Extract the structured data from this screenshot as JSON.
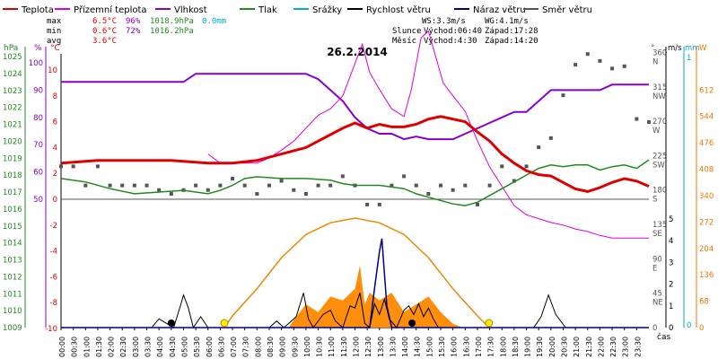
{
  "chart_data": {
    "type": "line",
    "title": "26.2.2014",
    "legend": [
      {
        "label": "Teplota",
        "color": "#dd0000"
      },
      {
        "label": "Přízemní teplota",
        "color": "#dd00dd"
      },
      {
        "label": "Vlhkost",
        "color": "#8800cc"
      },
      {
        "label": "Tlak",
        "color": "#228822"
      },
      {
        "label": "Srážky",
        "color": "#00aacc"
      },
      {
        "label": "Rychlost větru",
        "color": "#000000"
      },
      {
        "label": "Náraz větru",
        "color": "#000088"
      },
      {
        "label": "Směr větru",
        "color": "#555555"
      }
    ],
    "stats": {
      "max": {
        "label": "max",
        "temp": "6.5°C",
        "hum": "96%",
        "press": "1018.9hPa",
        "rain": "0.0mm"
      },
      "min": {
        "label": "min",
        "temp": "0.6°C",
        "hum": "72%",
        "press": "1016.2hPa"
      },
      "avg": {
        "label": "avg",
        "temp": "3.6°C"
      }
    },
    "wind": {
      "ws": "WS:3.3m/s",
      "wg": "WG:4.1m/s"
    },
    "sun": {
      "label": "Slunce",
      "rise": "Východ:06:40",
      "set": "Západ:17:28"
    },
    "moon": {
      "label": "Měsíc",
      "rise": "Východ:4:30",
      "set": "Západ:14:20"
    },
    "axes": {
      "hpa": {
        "label": "hPa",
        "ticks": [
          "1025",
          "1024",
          "1023",
          "1022",
          "1021",
          "1020",
          "1019",
          "1018",
          "1017",
          "1016",
          "1015",
          "1014",
          "1013",
          "1012",
          "1011",
          "1010",
          "1009"
        ]
      },
      "pct": {
        "label": "%",
        "ticks": [
          "100",
          "90",
          "80",
          "70",
          "60",
          "50"
        ]
      },
      "temp": {
        "label": "°C",
        "ticks": [
          "10",
          "8",
          "6",
          "4",
          "2",
          "0",
          "-2",
          "-4",
          "-6",
          "-8",
          "-10"
        ]
      },
      "dir": {
        "label": "°",
        "ticks": [
          {
            "v": "360",
            "n": "N"
          },
          {
            "v": "315",
            "n": "NW"
          },
          {
            "v": "270",
            "n": "W"
          },
          {
            "v": "225",
            "n": "SW"
          },
          {
            "v": "180",
            "n": "S"
          },
          {
            "v": "135",
            "n": "SE"
          },
          {
            "v": "90",
            "n": "E"
          },
          {
            "v": "45",
            "n": "NE"
          },
          {
            "v": "0",
            "n": ""
          }
        ]
      },
      "ms": {
        "label": "m/s",
        "ticks": [
          "5",
          "4",
          "3",
          "2",
          "1",
          "0"
        ]
      },
      "mm": {
        "label": "mm",
        "ticks": [
          "1",
          "0"
        ]
      },
      "wm2": {
        "label": "W",
        "ticks": [
          "612",
          "544",
          "476",
          "408",
          "340",
          "272",
          "204",
          "136",
          "68",
          "0"
        ]
      },
      "x_label": "čas",
      "x_ticks": [
        "00:00",
        "00:30",
        "01:00",
        "01:30",
        "02:00",
        "02:30",
        "03:00",
        "03:30",
        "04:00",
        "04:30",
        "05:00",
        "05:30",
        "06:00",
        "06:30",
        "07:00",
        "07:30",
        "08:00",
        "08:30",
        "09:00",
        "09:30",
        "10:00",
        "10:30",
        "11:00",
        "11:30",
        "12:00",
        "12:30",
        "13:00",
        "13:30",
        "14:00",
        "14:30",
        "15:00",
        "15:30",
        "16:00",
        "16:30",
        "17:00",
        "17:30",
        "18:00",
        "18:30",
        "19:00",
        "19:30",
        "20:00",
        "20:30",
        "21:00",
        "21:30",
        "22:00",
        "22:30",
        "23:00",
        "23:30"
      ]
    },
    "series": {
      "temperature": [
        [
          0,
          2.8
        ],
        [
          1.5,
          3
        ],
        [
          3,
          3
        ],
        [
          4.5,
          3
        ],
        [
          6,
          2.8
        ],
        [
          7,
          2.8
        ],
        [
          8,
          3
        ],
        [
          9,
          3.5
        ],
        [
          10,
          4
        ],
        [
          11,
          5
        ],
        [
          11.5,
          5.5
        ],
        [
          12,
          5.9
        ],
        [
          12.5,
          5.5
        ],
        [
          13,
          5.8
        ],
        [
          13.5,
          5.6
        ],
        [
          14,
          5.6
        ],
        [
          14.5,
          5.8
        ],
        [
          15,
          6.2
        ],
        [
          15.5,
          6.4
        ],
        [
          16,
          6.2
        ],
        [
          16.5,
          6
        ],
        [
          17,
          5.2
        ],
        [
          17.5,
          4.5
        ],
        [
          18,
          3.5
        ],
        [
          18.5,
          2.8
        ],
        [
          19,
          2.2
        ],
        [
          19.5,
          1.9
        ],
        [
          20,
          1.8
        ],
        [
          20.5,
          1.3
        ],
        [
          21,
          0.8
        ],
        [
          21.5,
          0.6
        ],
        [
          22,
          0.9
        ],
        [
          22.5,
          1.3
        ],
        [
          23,
          1.6
        ],
        [
          23.5,
          1.4
        ],
        [
          24,
          1
        ]
      ],
      "ground_temperature": [
        [
          6,
          3.5
        ],
        [
          6.5,
          2.8
        ],
        [
          7,
          2.8
        ],
        [
          8,
          2.8
        ],
        [
          8.5,
          3.2
        ],
        [
          9,
          3.8
        ],
        [
          9.5,
          4.5
        ],
        [
          10,
          5.5
        ],
        [
          10.5,
          6.5
        ],
        [
          11,
          7
        ],
        [
          11.5,
          8
        ],
        [
          12,
          10.5
        ],
        [
          12.3,
          12
        ],
        [
          12.6,
          9.8
        ],
        [
          13,
          8.5
        ],
        [
          13.5,
          7
        ],
        [
          14,
          6.4
        ],
        [
          14.3,
          8.5
        ],
        [
          14.7,
          12.5
        ],
        [
          15,
          13
        ],
        [
          15.3,
          11
        ],
        [
          15.6,
          9
        ],
        [
          16,
          8
        ],
        [
          16.5,
          6.8
        ],
        [
          17,
          4.5
        ],
        [
          17.5,
          2.5
        ],
        [
          18,
          1
        ],
        [
          18.5,
          -0.5
        ],
        [
          19,
          -1.2
        ],
        [
          19.5,
          -1.5
        ],
        [
          20,
          -1.8
        ],
        [
          20.5,
          -2
        ],
        [
          21,
          -2.3
        ],
        [
          21.5,
          -2.5
        ],
        [
          22,
          -2.8
        ],
        [
          22.5,
          -3
        ],
        [
          23,
          -3
        ],
        [
          24,
          -3
        ]
      ],
      "humidity": [
        [
          0,
          93
        ],
        [
          5,
          93
        ],
        [
          5.5,
          96
        ],
        [
          6,
          96
        ],
        [
          10,
          96
        ],
        [
          10.5,
          94
        ],
        [
          11,
          90
        ],
        [
          11.5,
          86
        ],
        [
          12,
          80
        ],
        [
          12.5,
          76
        ],
        [
          13,
          74
        ],
        [
          13.5,
          74
        ],
        [
          14,
          72
        ],
        [
          14.5,
          73
        ],
        [
          15,
          72
        ],
        [
          15.5,
          72
        ],
        [
          16,
          72
        ],
        [
          16.5,
          74
        ],
        [
          17,
          76
        ],
        [
          17.5,
          78
        ],
        [
          18,
          80
        ],
        [
          18.5,
          82
        ],
        [
          19,
          82
        ],
        [
          19.5,
          86
        ],
        [
          20,
          90
        ],
        [
          21,
          90
        ],
        [
          22,
          90
        ],
        [
          22.5,
          92
        ],
        [
          24,
          92
        ]
      ],
      "pressure": [
        [
          0,
          1017.8
        ],
        [
          1,
          1017.6
        ],
        [
          2,
          1017.2
        ],
        [
          3,
          1016.9
        ],
        [
          4,
          1017
        ],
        [
          5,
          1017.1
        ],
        [
          6,
          1016.9
        ],
        [
          6.5,
          1017.1
        ],
        [
          7,
          1017.4
        ],
        [
          7.5,
          1017.8
        ],
        [
          8,
          1017.9
        ],
        [
          9,
          1017.8
        ],
        [
          10,
          1017.8
        ],
        [
          11,
          1017.7
        ],
        [
          11.5,
          1017.5
        ],
        [
          12,
          1017.4
        ],
        [
          13,
          1017.4
        ],
        [
          14,
          1017.2
        ],
        [
          14.5,
          1016.9
        ],
        [
          15,
          1016.7
        ],
        [
          16,
          1016.3
        ],
        [
          16.5,
          1016.2
        ],
        [
          17,
          1016.4
        ],
        [
          17.5,
          1016.8
        ],
        [
          18,
          1017.2
        ],
        [
          18.5,
          1017.6
        ],
        [
          19,
          1018
        ],
        [
          19.5,
          1018.4
        ],
        [
          20,
          1018.6
        ],
        [
          20.5,
          1018.5
        ],
        [
          21,
          1018.6
        ],
        [
          21.5,
          1018.6
        ],
        [
          22,
          1018.3
        ],
        [
          22.5,
          1018.5
        ],
        [
          23,
          1018.6
        ],
        [
          23.5,
          1018.4
        ],
        [
          24,
          1018.9
        ]
      ],
      "wind_speed": [
        [
          0,
          0
        ],
        [
          3.7,
          0
        ],
        [
          4,
          0.4
        ],
        [
          4.3,
          0.2
        ],
        [
          4.6,
          0
        ],
        [
          4.9,
          1.1
        ],
        [
          5,
          1.5
        ],
        [
          5.2,
          0.9
        ],
        [
          5.4,
          0
        ],
        [
          5.7,
          0.5
        ],
        [
          6,
          0
        ],
        [
          8.5,
          0
        ],
        [
          8.8,
          0.3
        ],
        [
          9.1,
          0
        ],
        [
          9.6,
          0.5
        ],
        [
          9.9,
          1.6
        ],
        [
          10.1,
          0.4
        ],
        [
          10.3,
          0
        ],
        [
          10.7,
          0.6
        ],
        [
          11,
          0.8
        ],
        [
          11.2,
          0.3
        ],
        [
          11.5,
          0
        ],
        [
          11.8,
          1
        ],
        [
          12,
          0.9
        ],
        [
          12.2,
          1.6
        ],
        [
          12.4,
          0.2
        ],
        [
          12.6,
          0
        ],
        [
          12.8,
          1.1
        ],
        [
          13,
          0.6
        ],
        [
          13.2,
          1.3
        ],
        [
          13.4,
          0.4
        ],
        [
          13.7,
          0
        ],
        [
          14,
          0.8
        ],
        [
          14.2,
          1
        ],
        [
          14.4,
          0.6
        ],
        [
          14.6,
          1.1
        ],
        [
          14.8,
          0.5
        ],
        [
          15,
          0.9
        ],
        [
          15.2,
          0.4
        ],
        [
          15.4,
          0
        ],
        [
          16,
          0
        ],
        [
          19.3,
          0
        ],
        [
          19.6,
          0.5
        ],
        [
          19.9,
          1.5
        ],
        [
          20.2,
          0.6
        ],
        [
          20.6,
          0
        ],
        [
          24,
          0
        ]
      ],
      "wind_gust": [
        [
          0,
          0
        ],
        [
          12.6,
          0
        ],
        [
          12.8,
          1.8
        ],
        [
          13,
          3.5
        ],
        [
          13.1,
          4.1
        ],
        [
          13.2,
          2.5
        ],
        [
          13.3,
          1
        ],
        [
          13.5,
          0
        ],
        [
          24,
          0
        ]
      ],
      "solar": [
        [
          6.67,
          0
        ],
        [
          7,
          30
        ],
        [
          8,
          100
        ],
        [
          9,
          180
        ],
        [
          10,
          240
        ],
        [
          11,
          270
        ],
        [
          12,
          282
        ],
        [
          13,
          270
        ],
        [
          14,
          240
        ],
        [
          15,
          180
        ],
        [
          16,
          100
        ],
        [
          17,
          30
        ],
        [
          17.47,
          0
        ]
      ],
      "solar_measured": [
        [
          9.3,
          0
        ],
        [
          9.5,
          20
        ],
        [
          10,
          60
        ],
        [
          10.5,
          40
        ],
        [
          11,
          80
        ],
        [
          11.5,
          70
        ],
        [
          12,
          100
        ],
        [
          12.2,
          160
        ],
        [
          12.4,
          60
        ],
        [
          12.6,
          90
        ],
        [
          13,
          70
        ],
        [
          13.5,
          90
        ],
        [
          14,
          40
        ],
        [
          14.5,
          60
        ],
        [
          15,
          80
        ],
        [
          15.5,
          40
        ],
        [
          16,
          10
        ],
        [
          16.4,
          0
        ]
      ],
      "wind_direction": [
        [
          0,
          211
        ],
        [
          0.5,
          211
        ],
        [
          1,
          186
        ],
        [
          1.5,
          211
        ],
        [
          2,
          186
        ],
        [
          2.5,
          186
        ],
        [
          3,
          186
        ],
        [
          3.5,
          186
        ],
        [
          4,
          180
        ],
        [
          4.5,
          175
        ],
        [
          5,
          180
        ],
        [
          5.5,
          186
        ],
        [
          6,
          180
        ],
        [
          6.5,
          186
        ],
        [
          7,
          195
        ],
        [
          7.5,
          186
        ],
        [
          8,
          175
        ],
        [
          8.5,
          186
        ],
        [
          9,
          192
        ],
        [
          9.5,
          180
        ],
        [
          10,
          175
        ],
        [
          10.5,
          186
        ],
        [
          11,
          186
        ],
        [
          11.5,
          198
        ],
        [
          12,
          186
        ],
        [
          12.5,
          161
        ],
        [
          13,
          161
        ],
        [
          13.5,
          186
        ],
        [
          14,
          198
        ],
        [
          14.5,
          186
        ],
        [
          15,
          175
        ],
        [
          15.5,
          186
        ],
        [
          16,
          180
        ],
        [
          16.5,
          186
        ],
        [
          17,
          161
        ],
        [
          17.5,
          186
        ],
        [
          18,
          211
        ],
        [
          18.5,
          192
        ],
        [
          19,
          211
        ],
        [
          19.5,
          236
        ],
        [
          20,
          248
        ],
        [
          20.5,
          304
        ],
        [
          21,
          344
        ],
        [
          21.5,
          358
        ],
        [
          22,
          349
        ],
        [
          22.5,
          339
        ],
        [
          23,
          342
        ],
        [
          23.5,
          273
        ],
        [
          24,
          269
        ]
      ]
    },
    "sun_markers": {
      "sunrise": 6.67,
      "sunset": 17.47
    },
    "moon_markers": {
      "moonrise": 4.5,
      "moonset": 14.33
    }
  }
}
